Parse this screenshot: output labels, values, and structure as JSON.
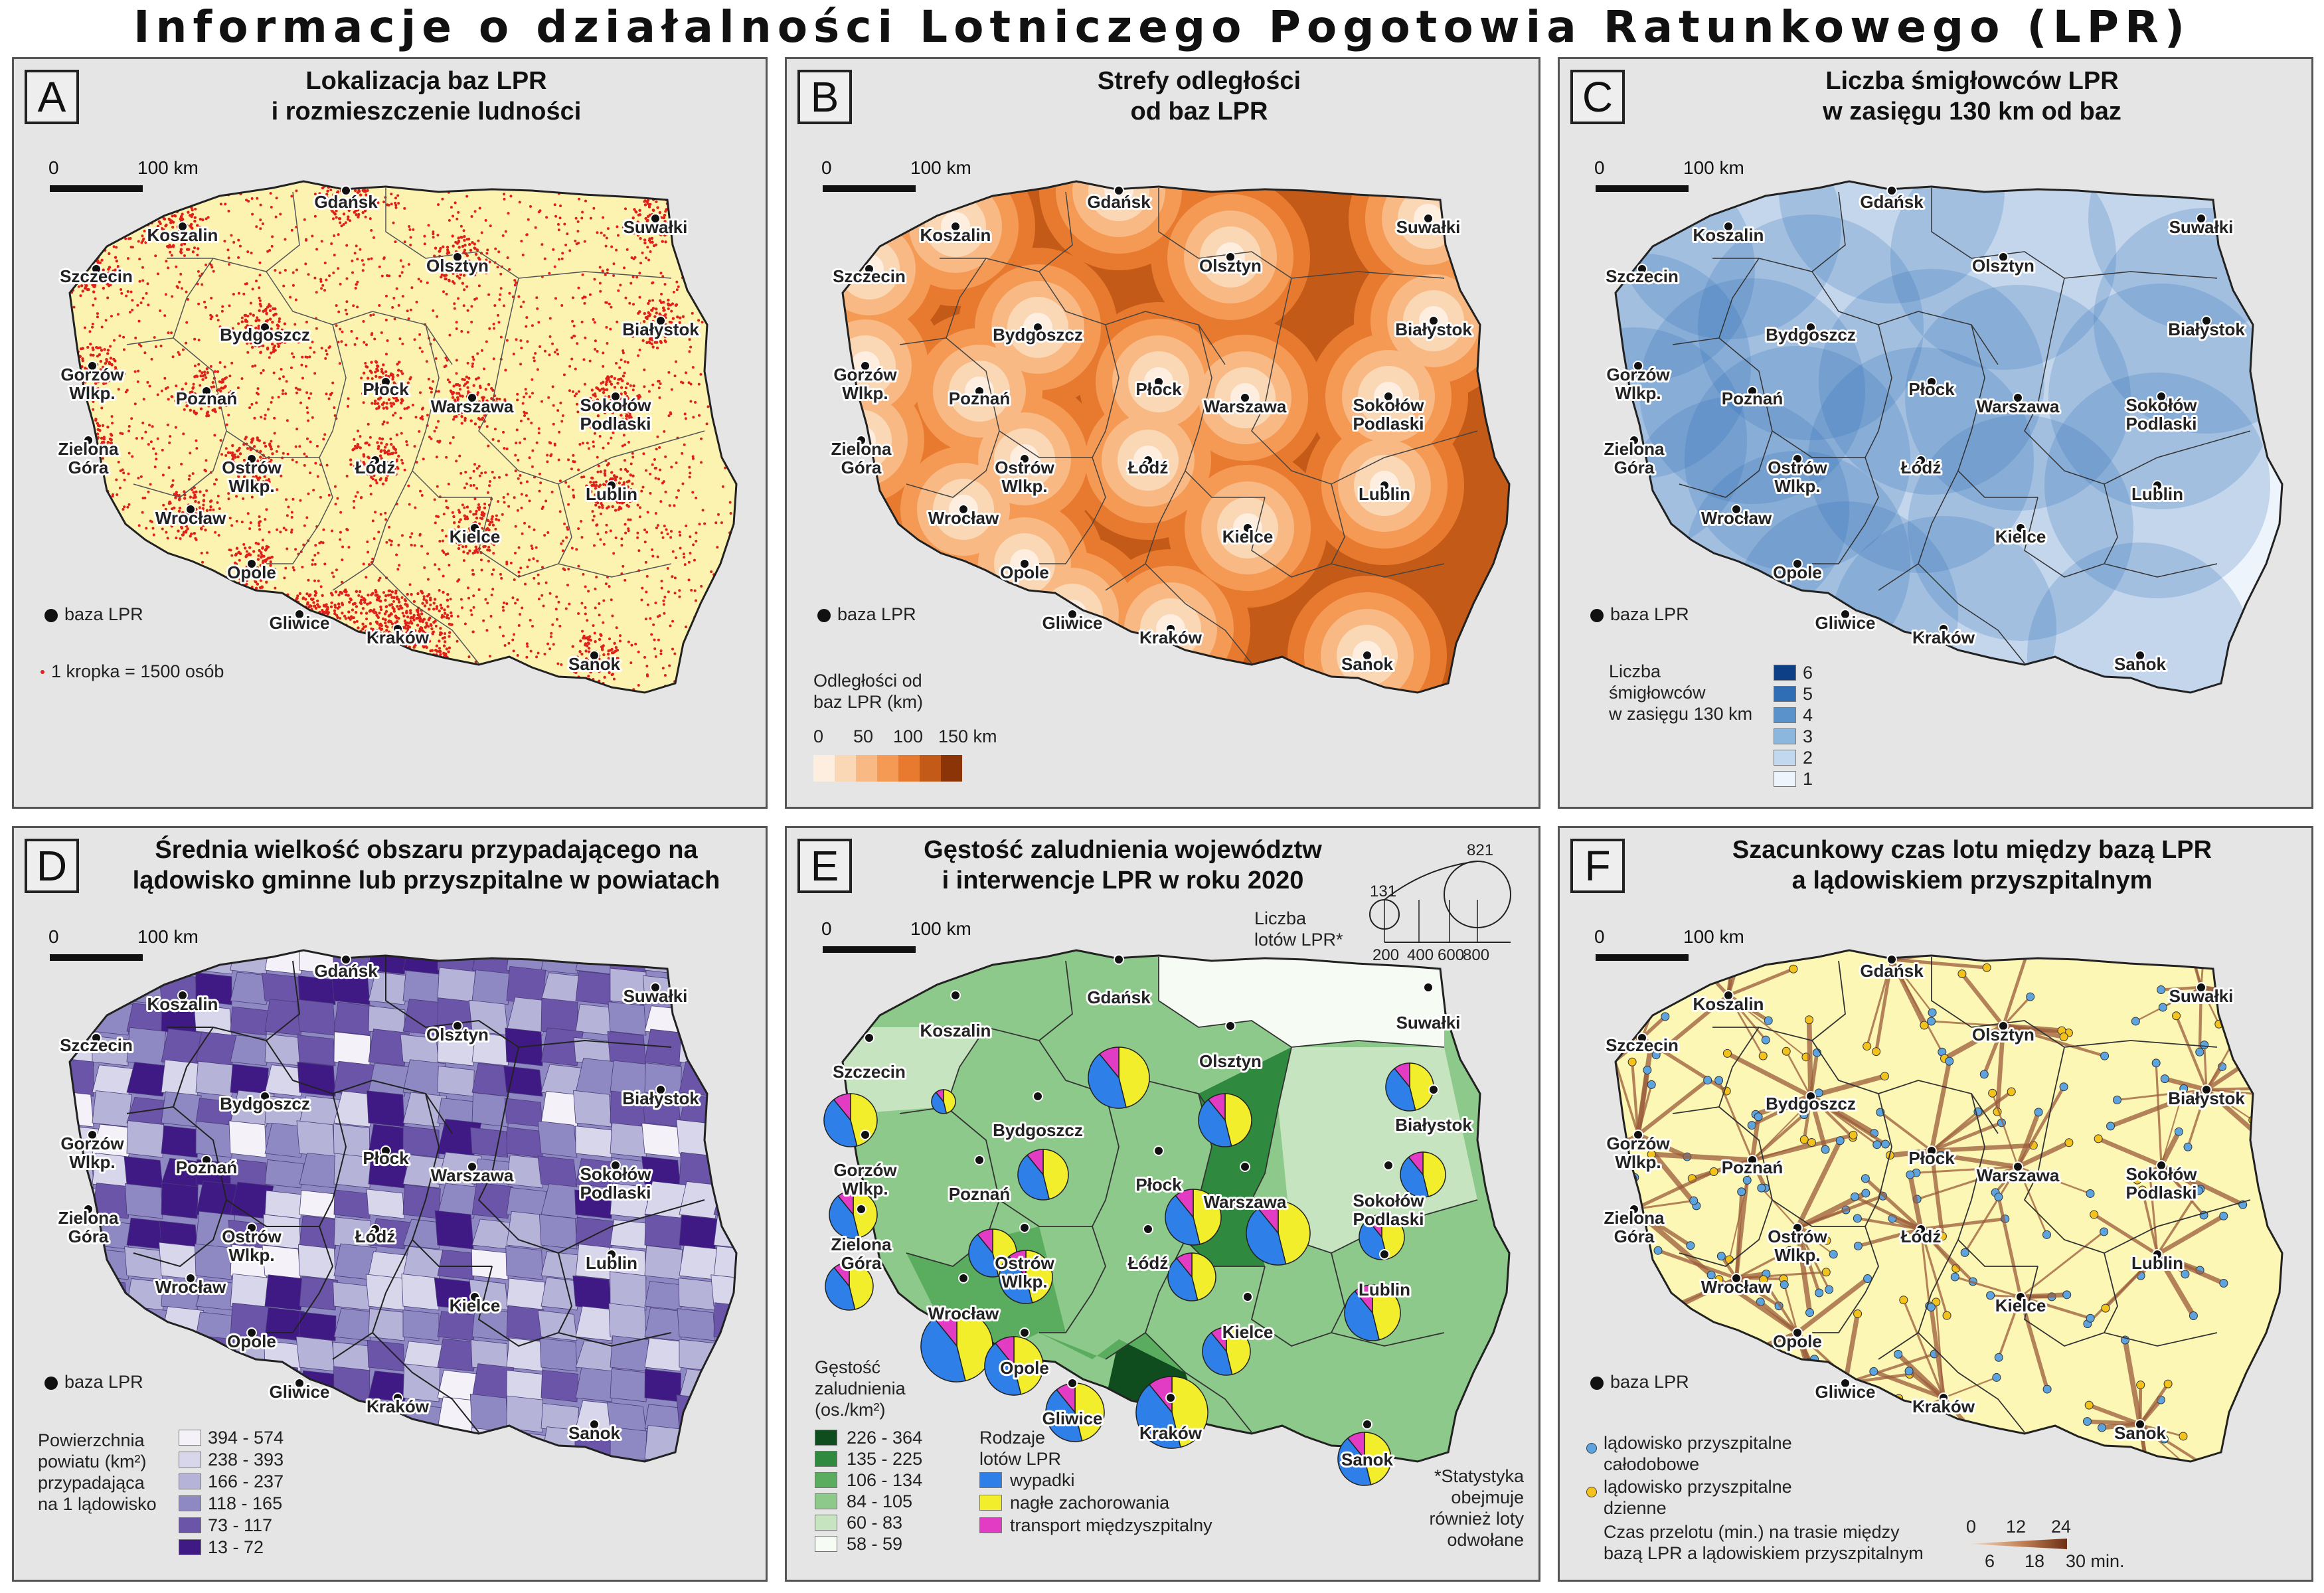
{
  "main_title": "Informacje o działalności Lotniczego Pogotowia Ratunkowego (LPR)",
  "scale": {
    "zero": "0",
    "hundred": "100 km"
  },
  "cities": [
    "Gdańsk",
    "Koszalin",
    "Suwałki",
    "Olsztyn",
    "Szczecin",
    "Białystok",
    "Bydgoszcz",
    "Gorzów Wlkp.",
    "Płock",
    "Poznań",
    "Warszawa",
    "Sokołów Podlaski",
    "Zielona Góra",
    "Ostrów Wlkp.",
    "Łódź",
    "Lublin",
    "Wrocław",
    "Kielce",
    "Opole",
    "Gliwice",
    "Kraków",
    "Sanok"
  ],
  "panels": {
    "A": {
      "letter": "A",
      "title_line1": "Lokalizacja baz LPR",
      "title_line2": "i rozmieszczenie ludności",
      "legend_base": "baza LPR",
      "legend_dot": "1 kropka = 1500 osób",
      "colors": {
        "land": "#fdf3b0",
        "dots": "#e0201a"
      }
    },
    "B": {
      "letter": "B",
      "title_line1": "Strefy odległości",
      "title_line2": "od baz LPR",
      "legend_title": [
        "Odległości od",
        "baz LPR (km)"
      ],
      "legend_ticks": [
        "0",
        "50",
        "100",
        "150 km"
      ],
      "legend_base": "",
      "colors": [
        "#fdeee0",
        "#fbd8b5",
        "#f9b984",
        "#f49a55",
        "#e87a2f",
        "#c45a17",
        "#8a3408"
      ]
    },
    "C": {
      "letter": "C",
      "title_line1": "Liczba śmigłowców LPR",
      "title_line2": "w zasięgu 130 km od baz",
      "legend_base": "baza LPR",
      "legend_title": [
        "Liczba",
        "śmigłowców",
        "w zasięgu 130 km"
      ],
      "classes": [
        "6",
        "5",
        "4",
        "3",
        "2",
        "1"
      ],
      "colors": [
        "#0c3f86",
        "#2f6db5",
        "#5a93cb",
        "#8bb6dd",
        "#c1d8ee",
        "#eef4fb"
      ]
    },
    "D": {
      "letter": "D",
      "title_line1": "Średnia wielkość obszaru przypadającego na",
      "title_line2": "lądowisko gminne lub przyszpitalne w powiatach",
      "legend_base": "baza LPR",
      "legend_title": [
        "Powierzchnia",
        "powiatu (km²)",
        "przypadająca",
        "na 1 lądowisko"
      ],
      "classes": [
        "394 - 574",
        "238 - 393",
        "166 - 237",
        "118 - 165",
        "73 - 117",
        "13 - 72"
      ],
      "colors": [
        "#f4f2f8",
        "#d7d6ea",
        "#b6b3d8",
        "#8e89c2",
        "#6a55a8",
        "#3f1a85"
      ]
    },
    "E": {
      "letter": "E",
      "title_line1": "Gęstość zaludnienia województw",
      "title_line2": "i interwencje LPR w roku 2020",
      "flights_label": [
        "Liczba",
        "lotów LPR*"
      ],
      "flights_min": "131",
      "flights_max": "821",
      "flights_ticks": [
        "200",
        "400",
        "600",
        "800"
      ],
      "density_title": [
        "Gęstość",
        "zaludnienia",
        "(os./km²)"
      ],
      "density_classes": [
        "226 - 364",
        "135 - 225",
        "106 - 134",
        "84 - 105",
        "60 - 83",
        "58 - 59"
      ],
      "density_colors": [
        "#0f4d1e",
        "#2f8a3f",
        "#5aac5e",
        "#8cc98a",
        "#c5e4bf",
        "#f6fbf4"
      ],
      "types_title": [
        "Rodzaje",
        "lotów LPR"
      ],
      "types": [
        {
          "label": "wypadki",
          "color": "#2f7fe8"
        },
        {
          "label": "nagłe zachorowania",
          "color": "#f2ee2c"
        },
        {
          "label": "transport międzyszpitalny",
          "color": "#e23cc4"
        }
      ],
      "footnote": [
        "*Statystyka",
        "obejmuje",
        "również loty",
        "odwołane"
      ]
    },
    "F": {
      "letter": "F",
      "title_line1": "Szacunkowy czas lotu między bazą LPR",
      "title_line2": "a lądowiskiem przyszpitalnym",
      "legend_base": "baza LPR",
      "legend_24h": [
        "lądowisko przyszpitalne",
        "całodobowe"
      ],
      "legend_day": [
        "lądowisko przyszpitalne",
        "dzienne"
      ],
      "legend_time": [
        "Czas przelotu (min.) na trasie między",
        "bazą LPR a lądowiskiem przyszpitalnym"
      ],
      "time_ticks_top": [
        "0",
        "12",
        "24"
      ],
      "time_ticks_bottom": [
        "6",
        "18",
        "30 min."
      ],
      "colors": {
        "land": "#fdf7b5",
        "rays": "#9a5b3a",
        "dot24": "#5da3dd",
        "dotday": "#f3c21d"
      }
    }
  }
}
